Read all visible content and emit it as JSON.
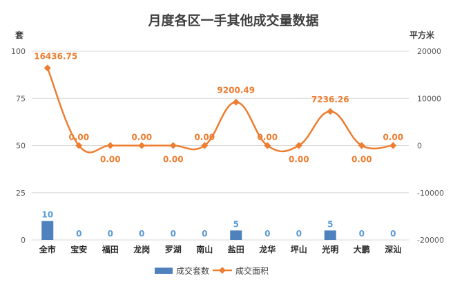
{
  "colors": {
    "bar": "#4f81bd",
    "line": "#ed7d31",
    "bar_label": "#5b9bd5",
    "line_label": "#ed7d31",
    "grid": "#d9d9d9"
  },
  "chart_data": {
    "type": "bar",
    "title": "月度各区一手其他成交量数据",
    "categories": [
      "全市",
      "宝安",
      "福田",
      "龙岗",
      "罗湖",
      "南山",
      "盐田",
      "龙华",
      "坪山",
      "光明",
      "大鹏",
      "深汕"
    ],
    "series": [
      {
        "name": "成交套数",
        "type": "bar",
        "axis": "left",
        "values": [
          10,
          0,
          0,
          0,
          0,
          0,
          5,
          0,
          0,
          5,
          0,
          0
        ],
        "labels": [
          "10",
          "0",
          "0",
          "0",
          "0",
          "0",
          "5",
          "0",
          "0",
          "5",
          "0",
          "0"
        ]
      },
      {
        "name": "成交面积",
        "type": "line",
        "axis": "right",
        "smooth": true,
        "values": [
          16436.75,
          0,
          0,
          0,
          0,
          0,
          9200.49,
          0,
          0,
          7236.26,
          0,
          0
        ],
        "labels": [
          "16436.75",
          "0.00",
          "0.00",
          "0.00",
          "0.00",
          "0.00",
          "9200.49",
          "0.00",
          "0.00",
          "7236.26",
          "0.00",
          "0.00"
        ]
      }
    ],
    "left_axis": {
      "label": "套",
      "min": 0,
      "max": 100,
      "ticks": [
        "0",
        "25",
        "50",
        "75",
        "100"
      ]
    },
    "right_axis": {
      "label": "平方米",
      "min": -20000,
      "max": 20000,
      "ticks": [
        "-20000",
        "-10000",
        "0",
        "10000",
        "20000"
      ]
    },
    "grid": true,
    "legend": "bottom"
  }
}
